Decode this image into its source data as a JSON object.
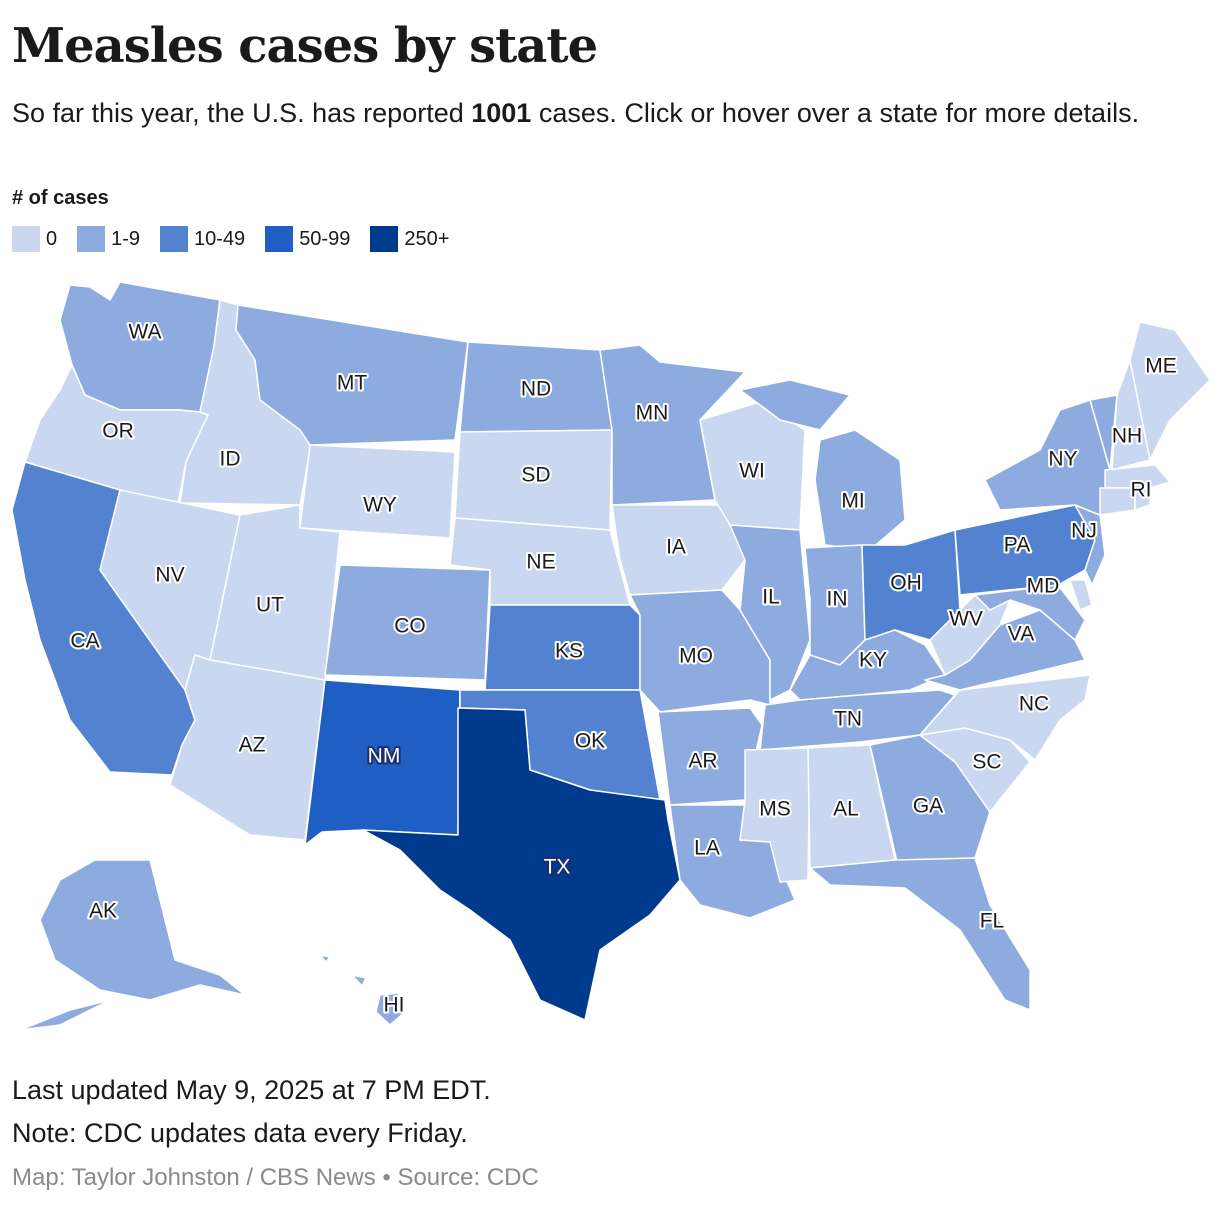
{
  "title": "Measles cases by state",
  "subtitle": {
    "before": "So far this year, the U.S. has reported ",
    "total": "1001",
    "after": " cases. Click or hover over a state for more details."
  },
  "legend": {
    "title": "# of cases",
    "items": [
      {
        "label": "0",
        "color": "#c9d8f0"
      },
      {
        "label": "1-9",
        "color": "#8eabdf"
      },
      {
        "label": "10-49",
        "color": "#5383d0"
      },
      {
        "label": "50-99",
        "color": "#1f5fc4"
      },
      {
        "label": "250+",
        "color": "#003a8c"
      }
    ]
  },
  "states": [
    {
      "abbr": "WA",
      "bin": "1-9"
    },
    {
      "abbr": "OR",
      "bin": "0"
    },
    {
      "abbr": "CA",
      "bin": "10-49"
    },
    {
      "abbr": "ID",
      "bin": "0"
    },
    {
      "abbr": "NV",
      "bin": "0"
    },
    {
      "abbr": "MT",
      "bin": "1-9"
    },
    {
      "abbr": "WY",
      "bin": "0"
    },
    {
      "abbr": "UT",
      "bin": "0"
    },
    {
      "abbr": "AZ",
      "bin": "0"
    },
    {
      "abbr": "CO",
      "bin": "1-9"
    },
    {
      "abbr": "NM",
      "bin": "50-99"
    },
    {
      "abbr": "ND",
      "bin": "1-9"
    },
    {
      "abbr": "SD",
      "bin": "0"
    },
    {
      "abbr": "NE",
      "bin": "0"
    },
    {
      "abbr": "KS",
      "bin": "10-49"
    },
    {
      "abbr": "OK",
      "bin": "10-49"
    },
    {
      "abbr": "TX",
      "bin": "250+"
    },
    {
      "abbr": "MN",
      "bin": "1-9"
    },
    {
      "abbr": "IA",
      "bin": "0"
    },
    {
      "abbr": "MO",
      "bin": "1-9"
    },
    {
      "abbr": "AR",
      "bin": "1-9"
    },
    {
      "abbr": "LA",
      "bin": "1-9"
    },
    {
      "abbr": "WI",
      "bin": "0"
    },
    {
      "abbr": "IL",
      "bin": "1-9"
    },
    {
      "abbr": "MI",
      "bin": "1-9"
    },
    {
      "abbr": "IN",
      "bin": "1-9"
    },
    {
      "abbr": "OH",
      "bin": "10-49"
    },
    {
      "abbr": "KY",
      "bin": "1-9"
    },
    {
      "abbr": "TN",
      "bin": "1-9"
    },
    {
      "abbr": "MS",
      "bin": "0"
    },
    {
      "abbr": "AL",
      "bin": "0"
    },
    {
      "abbr": "GA",
      "bin": "1-9"
    },
    {
      "abbr": "FL",
      "bin": "1-9"
    },
    {
      "abbr": "SC",
      "bin": "0"
    },
    {
      "abbr": "NC",
      "bin": "0"
    },
    {
      "abbr": "VA",
      "bin": "1-9"
    },
    {
      "abbr": "WV",
      "bin": "0"
    },
    {
      "abbr": "MD",
      "bin": "1-9"
    },
    {
      "abbr": "PA",
      "bin": "10-49"
    },
    {
      "abbr": "NJ",
      "bin": "1-9"
    },
    {
      "abbr": "NY",
      "bin": "1-9"
    },
    {
      "abbr": "VT",
      "bin": "1-9"
    },
    {
      "abbr": "NH",
      "bin": "0"
    },
    {
      "abbr": "ME",
      "bin": "0"
    },
    {
      "abbr": "MA",
      "bin": "0"
    },
    {
      "abbr": "RI",
      "bin": "0"
    },
    {
      "abbr": "CT",
      "bin": "0"
    },
    {
      "abbr": "DE",
      "bin": "0"
    },
    {
      "abbr": "AK",
      "bin": "1-9"
    },
    {
      "abbr": "HI",
      "bin": "1-9"
    }
  ],
  "footer": {
    "updated": "Last updated May 9, 2025 at 7 PM EDT.",
    "note": "Note: CDC updates data every Friday.",
    "credit": "Map: Taylor Johnston / CBS News • Source: CDC"
  }
}
